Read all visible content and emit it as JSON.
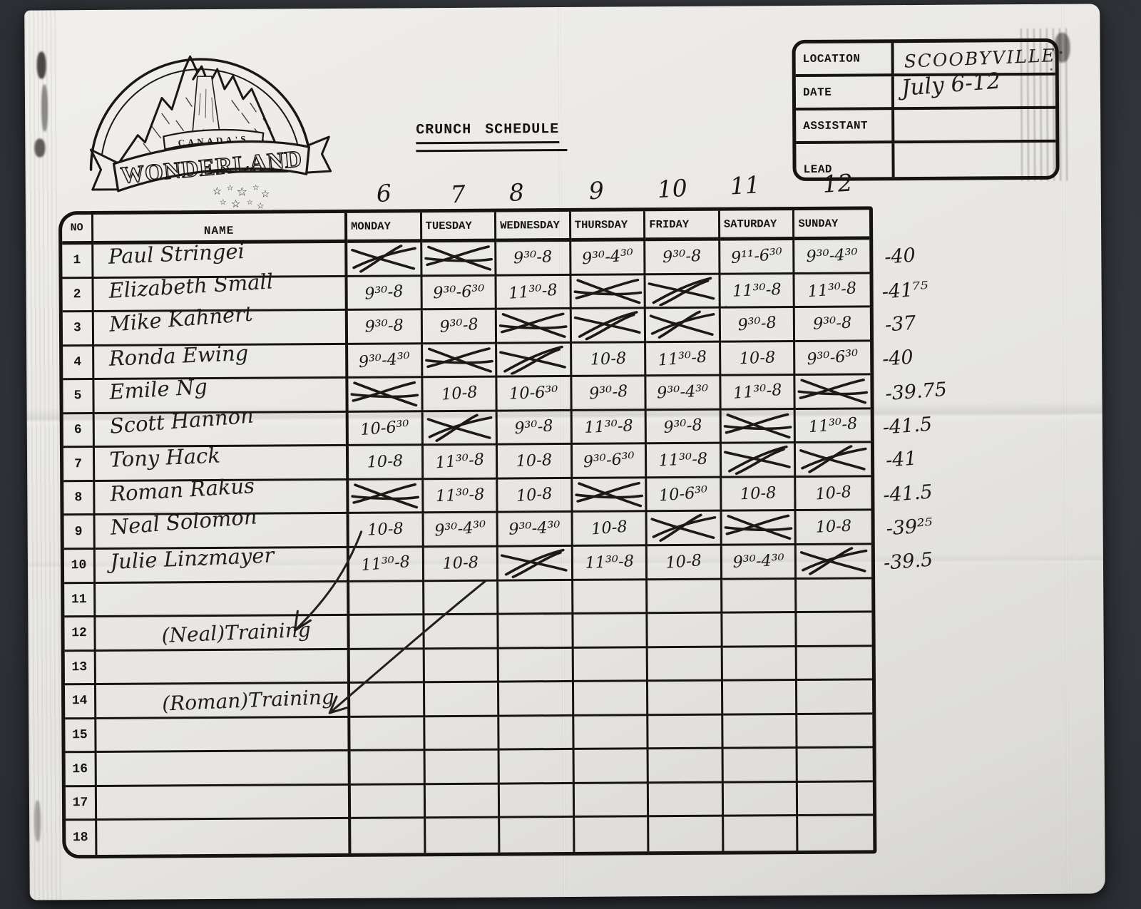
{
  "logo": {
    "arc_label": "CANADA'S",
    "name_label": "WONDERLAND"
  },
  "title": "CRUNCH SCHEDULE",
  "info_box": {
    "rows": [
      {
        "label": "LOCATION",
        "value": "Scoobyville"
      },
      {
        "label": "DATE",
        "value": "July 6-12"
      },
      {
        "label": "ASSISTANT",
        "value": ""
      },
      {
        "label": "LEAD",
        "value": ""
      }
    ]
  },
  "week_dates": [
    "6",
    "7",
    "8",
    "9",
    "10",
    "11",
    "12"
  ],
  "schedule": {
    "no_header": "NO",
    "name_header": "NAME",
    "day_headers": [
      "MONDAY",
      "TUESDAY",
      "WEDNESDAY",
      "THURSDAY",
      "FRIDAY",
      "SATURDAY",
      "SUNDAY"
    ],
    "crossed_out_symbol": "X",
    "rows": [
      {
        "no": "1",
        "name": "Paul Stringei",
        "kind": "signature",
        "days": [
          "X",
          "X",
          "9³⁰-8",
          "9³⁰-4³⁰",
          "9³⁰-8",
          "9¹¹-6³⁰",
          "9³⁰-4³⁰"
        ],
        "total": "-40"
      },
      {
        "no": "2",
        "name": "Elizabeth Small",
        "kind": "signature",
        "days": [
          "9³⁰-8",
          "9³⁰-6³⁰",
          "11³⁰-8",
          "X",
          "X",
          "11³⁰-8",
          "11³⁰-8"
        ],
        "total": "-41⁷⁵"
      },
      {
        "no": "3",
        "name": "Mike Kahnert",
        "kind": "signature",
        "days": [
          "9³⁰-8",
          "9³⁰-8",
          "X",
          "X",
          "X",
          "9³⁰-8",
          "9³⁰-8"
        ],
        "total": "-37"
      },
      {
        "no": "4",
        "name": "Ronda Ewing",
        "kind": "signature",
        "days": [
          "9³⁰-4³⁰",
          "X",
          "X",
          "10-8",
          "11³⁰-8",
          "10-8",
          "9³⁰-6³⁰"
        ],
        "total": "-40"
      },
      {
        "no": "5",
        "name": "Emile Ng",
        "kind": "signature",
        "days": [
          "X",
          "10-8",
          "10-6³⁰",
          "9³⁰-8",
          "9³⁰-4³⁰",
          "11³⁰-8",
          "X"
        ],
        "total": "-39.75"
      },
      {
        "no": "6",
        "name": "Scott Hannon",
        "kind": "signature",
        "days": [
          "10-6³⁰",
          "X",
          "9³⁰-8",
          "11³⁰-8",
          "9³⁰-8",
          "X",
          "11³⁰-8"
        ],
        "total": "-41.5"
      },
      {
        "no": "7",
        "name": "Tony Hack",
        "kind": "signature",
        "days": [
          "10-8",
          "11³⁰-8",
          "10-8",
          "9³⁰-6³⁰",
          "11³⁰-8",
          "X",
          "X"
        ],
        "total": "-41"
      },
      {
        "no": "8",
        "name": "Roman Rakus",
        "kind": "signature",
        "days": [
          "X",
          "11³⁰-8",
          "10-8",
          "X",
          "10-6³⁰",
          "10-8",
          "10-8"
        ],
        "total": "-41.5"
      },
      {
        "no": "9",
        "name": "Neal Solomon",
        "kind": "signature",
        "days": [
          "10-8",
          "9³⁰-4³⁰",
          "9³⁰-4³⁰",
          "10-8",
          "X",
          "X",
          "10-8"
        ],
        "total": "-39²⁵"
      },
      {
        "no": "10",
        "name": "Julie Linzmayer",
        "kind": "signature",
        "days": [
          "11³⁰-8",
          "10-8",
          "X",
          "11³⁰-8",
          "10-8",
          "9³⁰-4³⁰",
          "X"
        ],
        "total": "-39.5"
      },
      {
        "no": "11",
        "name": "",
        "kind": "empty",
        "days": [
          "",
          "",
          "",
          "",
          "",
          "",
          ""
        ],
        "total": ""
      },
      {
        "no": "12",
        "name": "(Neal)Training",
        "kind": "note",
        "days": [
          "",
          "",
          "",
          "",
          "",
          "",
          ""
        ],
        "total": ""
      },
      {
        "no": "13",
        "name": "",
        "kind": "empty",
        "days": [
          "",
          "",
          "",
          "",
          "",
          "",
          ""
        ],
        "total": ""
      },
      {
        "no": "14",
        "name": "(Roman)Training",
        "kind": "note",
        "days": [
          "",
          "",
          "",
          "",
          "",
          "",
          ""
        ],
        "total": ""
      },
      {
        "no": "15",
        "name": "",
        "kind": "empty",
        "days": [
          "",
          "",
          "",
          "",
          "",
          "",
          ""
        ],
        "total": ""
      },
      {
        "no": "16",
        "name": "",
        "kind": "empty",
        "days": [
          "",
          "",
          "",
          "",
          "",
          "",
          ""
        ],
        "total": ""
      },
      {
        "no": "17",
        "name": "",
        "kind": "empty",
        "days": [
          "",
          "",
          "",
          "",
          "",
          "",
          ""
        ],
        "total": ""
      },
      {
        "no": "18",
        "name": "",
        "kind": "empty",
        "days": [
          "",
          "",
          "",
          "",
          "",
          "",
          ""
        ],
        "total": ""
      }
    ]
  },
  "colors": {
    "ink": "#17130e",
    "handwriting_ink": "#211d18",
    "paper": "#eae9e5",
    "backdrop": "#34373d"
  }
}
